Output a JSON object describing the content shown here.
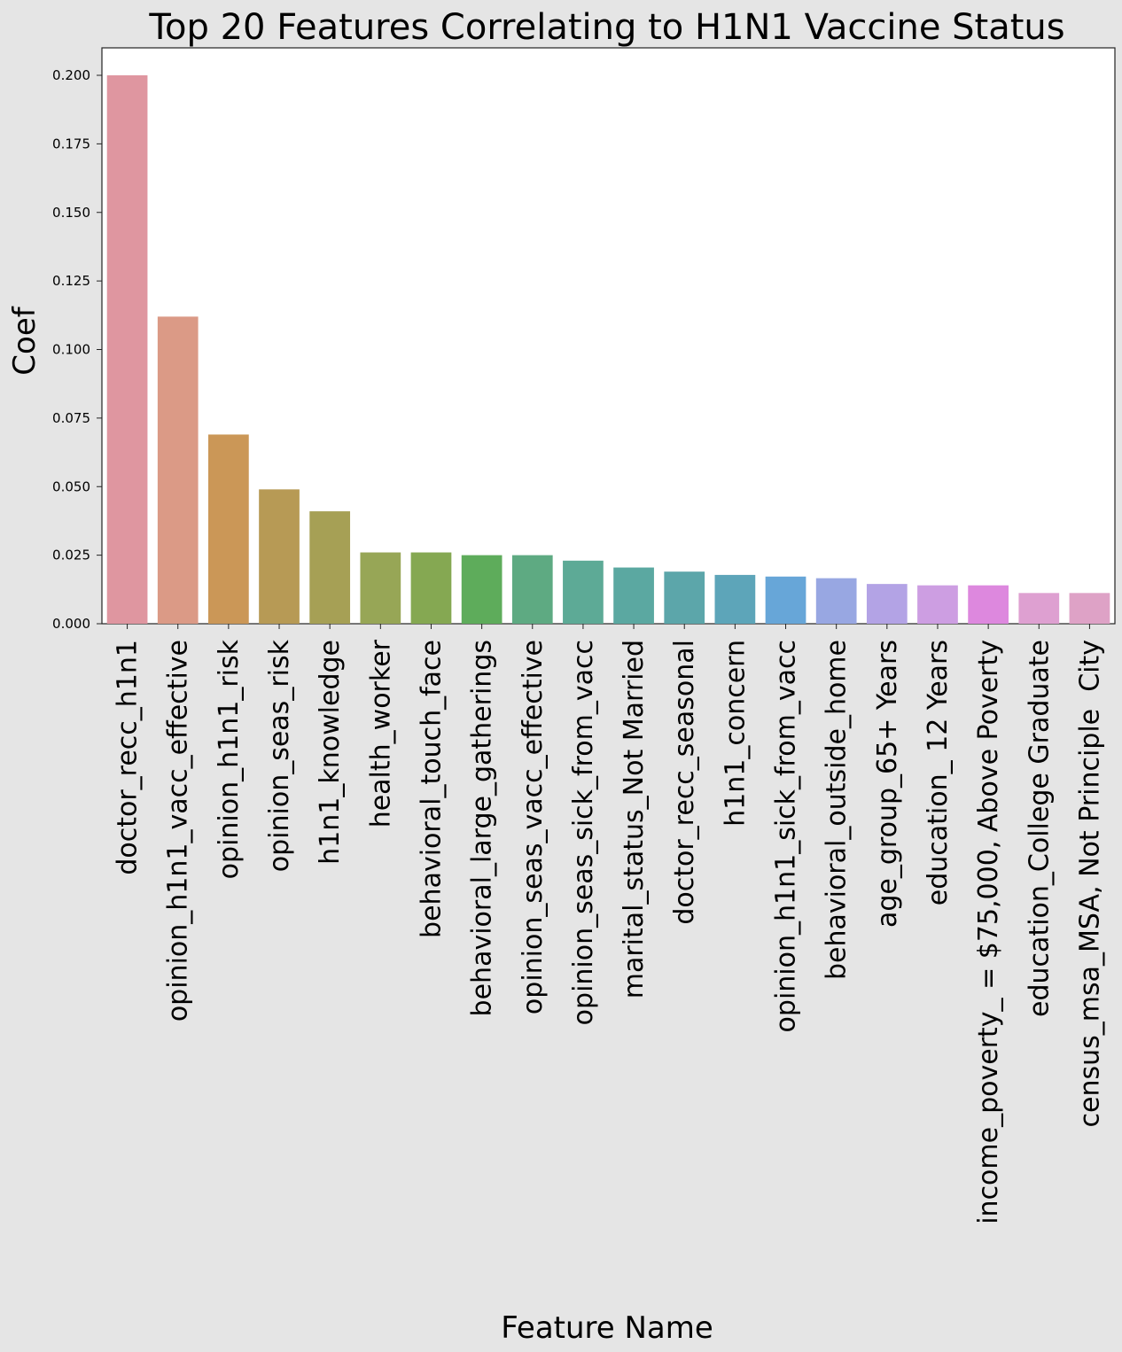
{
  "chart_data": {
    "type": "bar",
    "title": "Top 20 Features Correlating to H1N1 Vaccine Status",
    "xlabel": "Feature Name",
    "ylabel": "Coef",
    "ylim": [
      0,
      0.21
    ],
    "yticks": [
      "0.000",
      "0.025",
      "0.050",
      "0.075",
      "0.100",
      "0.125",
      "0.150",
      "0.175",
      "0.200"
    ],
    "grid": false,
    "categories": [
      "doctor_recc_h1n1",
      "opinion_h1n1_vacc_effective",
      "opinion_h1n1_risk",
      "opinion_seas_risk",
      "h1n1_knowledge",
      "health_worker",
      "behavioral_touch_face",
      "behavioral_large_gatherings",
      "opinion_seas_vacc_effective",
      "opinion_seas_sick_from_vacc",
      "marital_status_Not Married",
      "doctor_recc_seasonal",
      "h1n1_concern",
      "opinion_h1n1_sick_from_vacc",
      "behavioral_outside_home",
      "age_group_65+ Years",
      "education_ 12 Years",
      "income_poverty_ = $75,000, Above Poverty",
      "education_College Graduate",
      "census_msa_MSA, Not Principle  City"
    ],
    "values": [
      0.2,
      0.112,
      0.069,
      0.049,
      0.041,
      0.026,
      0.026,
      0.025,
      0.025,
      0.023,
      0.0205,
      0.019,
      0.0178,
      0.0172,
      0.0166,
      0.0145,
      0.014,
      0.014,
      0.0112,
      0.0112
    ],
    "colors": [
      "#df96a0",
      "#db9a86",
      "#cb9757",
      "#b79a55",
      "#a6a055",
      "#97a656",
      "#85a852",
      "#5eac5b",
      "#5eaa82",
      "#5daa96",
      "#5ba8a1",
      "#5ca6aa",
      "#5da5b9",
      "#67a6d8",
      "#98a7e2",
      "#b3a3e5",
      "#cd9ee2",
      "#dd88de",
      "#dea0d1",
      "#dea2c6"
    ]
  }
}
